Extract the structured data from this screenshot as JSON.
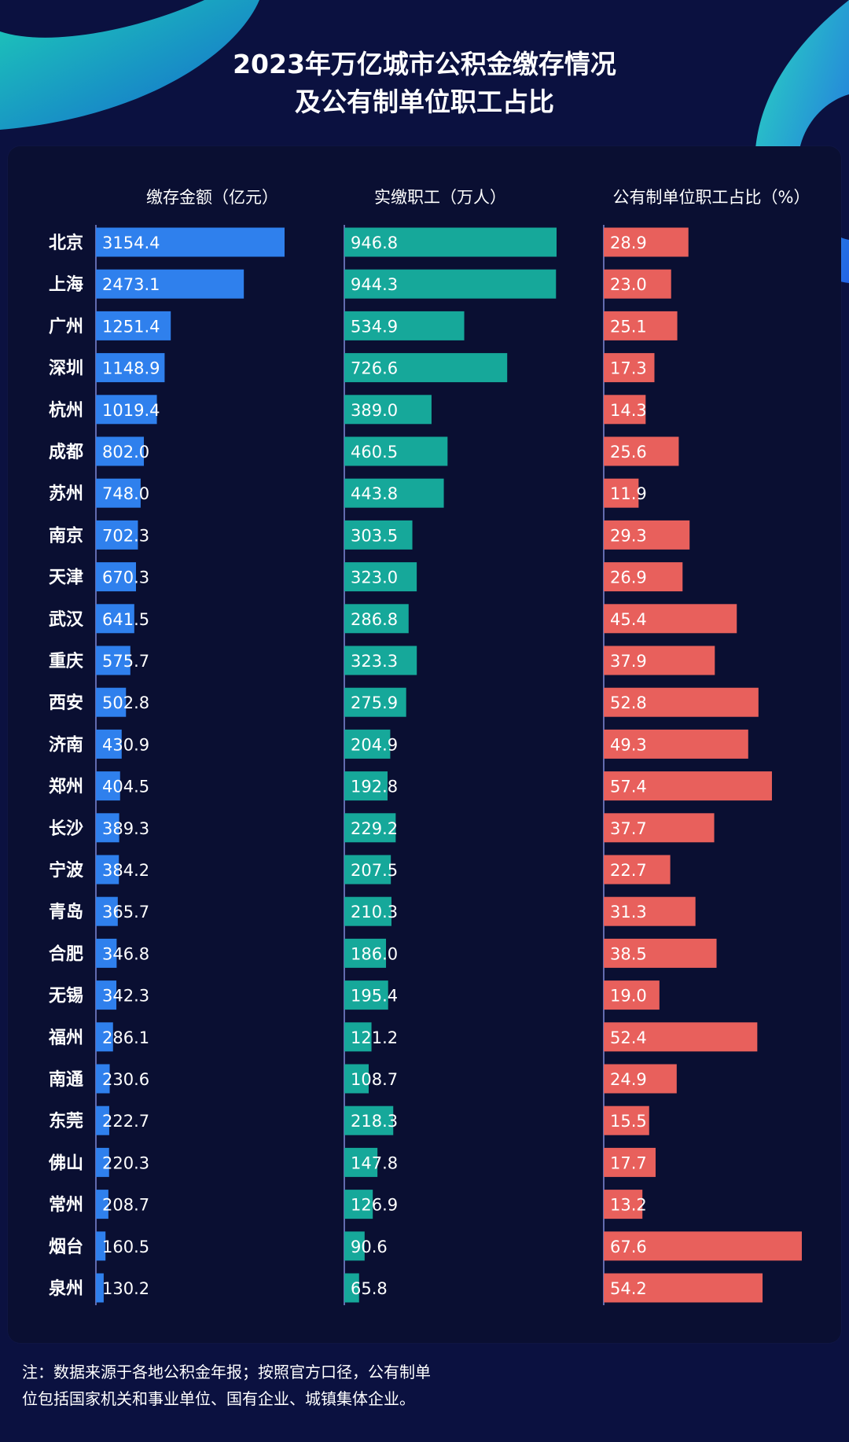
{
  "title_line1": "2023年万亿城市公积金缴存情况",
  "title_line2": "及公有制单位职工占比",
  "footnote_line1": "注：数据来源于各地公积金年报；按照官方口径，公有制单",
  "footnote_line2": "位包括国家机关和事业单位、国有企业、城镇集体企业。",
  "colors": {
    "background": "#0b1140",
    "panel": "#0a0f32",
    "blue": "#2f80ed",
    "teal": "#16a89a",
    "red": "#e8605c",
    "axis": "#7f8ad8"
  },
  "chart_data": {
    "type": "bar",
    "categories": [
      "北京",
      "上海",
      "广州",
      "深圳",
      "杭州",
      "成都",
      "苏州",
      "南京",
      "天津",
      "武汉",
      "重庆",
      "西安",
      "济南",
      "郑州",
      "长沙",
      "宁波",
      "青岛",
      "合肥",
      "无锡",
      "福州",
      "南通",
      "东莞",
      "佛山",
      "常州",
      "烟台",
      "泉州"
    ],
    "series": [
      {
        "name": "缴存金额（亿元）",
        "values": [
          3154.4,
          2473.1,
          1251.4,
          1148.9,
          1019.4,
          802.0,
          748.0,
          702.3,
          670.3,
          641.5,
          575.7,
          502.8,
          430.9,
          404.5,
          389.3,
          384.2,
          365.7,
          346.8,
          342.3,
          286.1,
          230.6,
          222.7,
          220.3,
          208.7,
          160.5,
          130.2
        ]
      },
      {
        "name": "实缴职工（万人）",
        "values": [
          946.8,
          944.3,
          534.9,
          726.6,
          389.0,
          460.5,
          443.8,
          303.5,
          323.0,
          286.8,
          323.3,
          275.9,
          204.9,
          192.8,
          229.2,
          207.5,
          210.3,
          186.0,
          195.4,
          121.2,
          108.7,
          218.3,
          147.8,
          126.9,
          90.6,
          65.8
        ]
      },
      {
        "name": "公有制单位职工占比（%）",
        "values": [
          28.9,
          23.0,
          25.1,
          17.3,
          14.3,
          25.6,
          11.9,
          29.3,
          26.9,
          45.4,
          37.9,
          52.8,
          49.3,
          57.4,
          37.7,
          22.7,
          31.3,
          38.5,
          19.0,
          52.4,
          24.9,
          15.5,
          17.7,
          13.2,
          67.6,
          54.2
        ]
      }
    ],
    "xlabel": "",
    "ylabel": "",
    "legend": "none",
    "grid": false
  }
}
